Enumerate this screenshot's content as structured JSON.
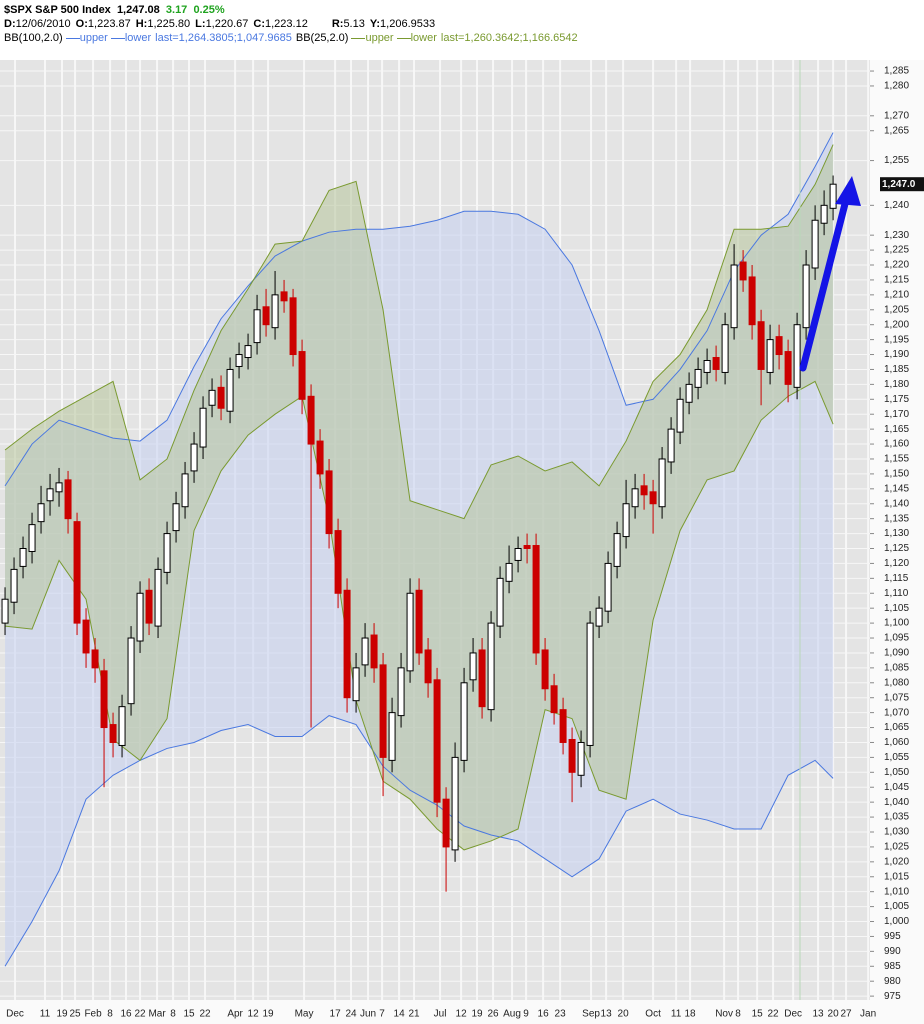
{
  "header": {
    "symbol": "$SPX S&P 500 Index",
    "last": "1,247.08",
    "change": "3.17",
    "change_pct": "0.25%",
    "ohlc": [
      {
        "k": "D:",
        "v": "12/06/2010"
      },
      {
        "k": "O:",
        "v": "1,223.87"
      },
      {
        "k": "H:",
        "v": "1,225.80"
      },
      {
        "k": "L:",
        "v": "1,220.67"
      },
      {
        "k": "C:",
        "v": "1,223.12"
      },
      {
        "k": "R:",
        "v": "5.13"
      },
      {
        "k": "Y:",
        "v": "1,206.9533"
      }
    ],
    "bb": [
      {
        "name": "BB(100,2.0)",
        "upper": "upper",
        "lower": "lower",
        "last": "last=1,264.3805;1,047.9685"
      },
      {
        "name": "BB(25,2.0)",
        "upper": "upper",
        "lower": "lower",
        "last": "last=1,260.3642;1,166.6542"
      }
    ]
  },
  "chart_data": {
    "type": "candlestick",
    "last_label": "1,247.0",
    "up_color": "#000000",
    "down_color": "#cc0000",
    "grid": true,
    "xlim": [
      -0.56,
      96.1
    ],
    "ylim": [
      973.7,
      1288.7
    ],
    "x": [
      0,
      1,
      2,
      3,
      4,
      5,
      6,
      7,
      8,
      9,
      10,
      11,
      12,
      13,
      14,
      15,
      16,
      17,
      18,
      19,
      20,
      21,
      22,
      23,
      24,
      25,
      26,
      27,
      28,
      29,
      30,
      31,
      32,
      33,
      34,
      35,
      36,
      37,
      38,
      39,
      40,
      41,
      42,
      43,
      44,
      45,
      46,
      47,
      48,
      49,
      50,
      51,
      52,
      53,
      54,
      55,
      56,
      57,
      58,
      59,
      60,
      61,
      62,
      63,
      64,
      65,
      66,
      67,
      68,
      69,
      70,
      71,
      72,
      73,
      74,
      75,
      76,
      77,
      78,
      79,
      80,
      81,
      82,
      83,
      84,
      85,
      86,
      87,
      88,
      89,
      90,
      91,
      92
    ],
    "open": [
      1100,
      1107,
      1119,
      1124,
      1134,
      1141,
      1144,
      1148,
      1134,
      1101,
      1091,
      1084,
      1066,
      1059,
      1073,
      1094,
      1111,
      1099,
      1117,
      1131,
      1139,
      1151,
      1159,
      1173,
      1179,
      1171,
      1186,
      1189,
      1194,
      1206,
      1199,
      1211,
      1209,
      1191,
      1176,
      1161,
      1151,
      1131,
      1111,
      1074,
      1086,
      1096,
      1086,
      1054,
      1069,
      1084,
      1111,
      1091,
      1081,
      1041,
      1024,
      1054,
      1081,
      1091,
      1071,
      1099,
      1114,
      1121,
      1126,
      1126,
      1091,
      1079,
      1071,
      1061,
      1049,
      1059,
      1099,
      1104,
      1119,
      1129,
      1139,
      1146,
      1144,
      1139,
      1154,
      1164,
      1174,
      1179,
      1184,
      1189,
      1184,
      1199,
      1221,
      1216,
      1201,
      1184,
      1196,
      1191,
      1179,
      1199,
      1219,
      1234,
      1239
    ],
    "high": [
      1112,
      1122,
      1129,
      1137,
      1146,
      1150,
      1152,
      1151,
      1137,
      1105,
      1095,
      1088,
      1070,
      1076,
      1099,
      1114,
      1115,
      1122,
      1134,
      1144,
      1154,
      1164,
      1176,
      1182,
      1183,
      1189,
      1194,
      1197,
      1210,
      1212,
      1218,
      1215,
      1212,
      1195,
      1180,
      1165,
      1155,
      1135,
      1115,
      1090,
      1100,
      1100,
      1090,
      1075,
      1090,
      1115,
      1115,
      1095,
      1085,
      1045,
      1060,
      1085,
      1095,
      1095,
      1104,
      1119,
      1126,
      1129,
      1130,
      1130,
      1095,
      1083,
      1075,
      1065,
      1064,
      1104,
      1109,
      1124,
      1134,
      1148,
      1150,
      1150,
      1148,
      1159,
      1169,
      1179,
      1184,
      1189,
      1192,
      1193,
      1204,
      1227,
      1225,
      1220,
      1205,
      1200,
      1200,
      1195,
      1204,
      1225,
      1240,
      1245,
      1250
    ],
    "low": [
      1096,
      1103,
      1115,
      1120,
      1130,
      1136,
      1139,
      1130,
      1096,
      1085,
      1080,
      1045,
      1055,
      1055,
      1069,
      1090,
      1096,
      1095,
      1113,
      1127,
      1135,
      1147,
      1155,
      1169,
      1168,
      1167,
      1182,
      1185,
      1190,
      1196,
      1195,
      1204,
      1186,
      1170,
      1065,
      1145,
      1125,
      1105,
      1070,
      1070,
      1082,
      1080,
      1042,
      1050,
      1065,
      1080,
      1086,
      1075,
      1035,
      1010,
      1020,
      1050,
      1077,
      1068,
      1067,
      1095,
      1110,
      1117,
      1120,
      1086,
      1074,
      1066,
      1056,
      1040,
      1045,
      1055,
      1095,
      1100,
      1115,
      1125,
      1135,
      1138,
      1130,
      1135,
      1150,
      1160,
      1170,
      1175,
      1180,
      1181,
      1180,
      1195,
      1211,
      1195,
      1173,
      1180,
      1185,
      1174,
      1175,
      1195,
      1215,
      1230,
      1235
    ],
    "close": [
      1108,
      1118,
      1125,
      1133,
      1140,
      1145,
      1147,
      1135,
      1100,
      1090,
      1085,
      1065,
      1060,
      1072,
      1095,
      1110,
      1100,
      1118,
      1130,
      1140,
      1150,
      1160,
      1172,
      1178,
      1172,
      1185,
      1190,
      1193,
      1205,
      1200,
      1210,
      1208,
      1190,
      1175,
      1160,
      1150,
      1130,
      1110,
      1075,
      1085,
      1095,
      1085,
      1055,
      1070,
      1085,
      1110,
      1090,
      1080,
      1040,
      1025,
      1055,
      1080,
      1090,
      1072,
      1100,
      1115,
      1120,
      1125,
      1125,
      1090,
      1078,
      1070,
      1060,
      1050,
      1060,
      1100,
      1105,
      1120,
      1130,
      1140,
      1145,
      1143,
      1140,
      1155,
      1165,
      1175,
      1180,
      1185,
      1188,
      1185,
      1200,
      1220,
      1215,
      1200,
      1185,
      1195,
      1190,
      1180,
      1200,
      1220,
      1235,
      1240,
      1247.08
    ],
    "band_x": [
      0,
      3,
      6,
      9,
      12,
      15,
      18,
      21,
      24,
      27,
      30,
      33,
      36,
      39,
      42,
      45,
      48,
      51,
      54,
      57,
      60,
      63,
      66,
      69,
      72,
      75,
      78,
      81,
      84,
      87,
      90,
      92
    ],
    "bands": [
      {
        "color": "#4a78e0",
        "fill": "#c4cff0",
        "upper": [
          1146,
          1160,
          1168,
          1165,
          1162,
          1161,
          1168,
          1186,
          1202,
          1213,
          1223,
          1228,
          1231,
          1232,
          1232,
          1233,
          1235,
          1238,
          1238,
          1237,
          1232,
          1220,
          1198,
          1173,
          1175,
          1185,
          1198,
          1218,
          1230,
          1237,
          1253,
          1264.38
        ],
        "lower": [
          985,
          1000,
          1017,
          1041,
          1049,
          1054,
          1058,
          1060,
          1064,
          1066,
          1062,
          1062,
          1069,
          1066,
          1052,
          1044,
          1039,
          1032,
          1029,
          1027,
          1021,
          1015,
          1021,
          1037,
          1041,
          1036,
          1034,
          1031,
          1031,
          1049,
          1054,
          1047.97
        ]
      },
      {
        "color": "#7a9a30",
        "fill": "#b6c49a",
        "upper": [
          1158,
          1165,
          1171,
          1176,
          1181,
          1148,
          1155,
          1178,
          1198,
          1212,
          1227,
          1228,
          1245,
          1248,
          1205,
          1141,
          1138,
          1135,
          1153,
          1156,
          1151,
          1154,
          1146,
          1161,
          1181,
          1190,
          1205,
          1232,
          1232,
          1233,
          1247,
          1260.36
        ],
        "lower": [
          1099,
          1098,
          1121,
          1108,
          1061,
          1054,
          1068,
          1131,
          1151,
          1163,
          1170,
          1176,
          1135,
          1074,
          1047,
          1041,
          1031,
          1024,
          1027,
          1031,
          1071,
          1068,
          1044,
          1041,
          1101,
          1131,
          1148,
          1151,
          1168,
          1176,
          1181,
          1166.65
        ]
      }
    ],
    "yticks": [
      {
        "value": 1285,
        "label": "1,285"
      },
      {
        "value": 1280,
        "label": "1,280"
      },
      {
        "value": 1270,
        "label": "1,270"
      },
      {
        "value": 1265,
        "label": "1,265"
      },
      {
        "value": 1255,
        "label": "1,255"
      },
      {
        "value": 1240,
        "label": "1,240"
      },
      {
        "value": 1230,
        "label": "1,230"
      },
      {
        "value": 1225,
        "label": "1,225"
      },
      {
        "value": 1220,
        "label": "1,220"
      },
      {
        "value": 1215,
        "label": "1,215"
      },
      {
        "value": 1210,
        "label": "1,210"
      },
      {
        "value": 1205,
        "label": "1,205"
      },
      {
        "value": 1200,
        "label": "1,200"
      },
      {
        "value": 1195,
        "label": "1,195"
      },
      {
        "value": 1190,
        "label": "1,190"
      },
      {
        "value": 1185,
        "label": "1,185"
      },
      {
        "value": 1180,
        "label": "1,180"
      },
      {
        "value": 1175,
        "label": "1,175"
      },
      {
        "value": 1170,
        "label": "1,170"
      },
      {
        "value": 1165,
        "label": "1,165"
      },
      {
        "value": 1160,
        "label": "1,160"
      },
      {
        "value": 1155,
        "label": "1,155"
      },
      {
        "value": 1150,
        "label": "1,150"
      },
      {
        "value": 1145,
        "label": "1,145"
      },
      {
        "value": 1140,
        "label": "1,140"
      },
      {
        "value": 1135,
        "label": "1,135"
      },
      {
        "value": 1130,
        "label": "1,130"
      },
      {
        "value": 1125,
        "label": "1,125"
      },
      {
        "value": 1120,
        "label": "1,120"
      },
      {
        "value": 1115,
        "label": "1,115"
      },
      {
        "value": 1110,
        "label": "1,110"
      },
      {
        "value": 1105,
        "label": "1,105"
      },
      {
        "value": 1100,
        "label": "1,100"
      },
      {
        "value": 1095,
        "label": "1,095"
      },
      {
        "value": 1090,
        "label": "1,090"
      },
      {
        "value": 1085,
        "label": "1,085"
      },
      {
        "value": 1080,
        "label": "1,080"
      },
      {
        "value": 1075,
        "label": "1,075"
      },
      {
        "value": 1070,
        "label": "1,070"
      },
      {
        "value": 1065,
        "label": "1,065"
      },
      {
        "value": 1060,
        "label": "1,060"
      },
      {
        "value": 1055,
        "label": "1,055"
      },
      {
        "value": 1050,
        "label": "1,050"
      },
      {
        "value": 1045,
        "label": "1,045"
      },
      {
        "value": 1040,
        "label": "1,040"
      },
      {
        "value": 1035,
        "label": "1,035"
      },
      {
        "value": 1030,
        "label": "1,030"
      },
      {
        "value": 1025,
        "label": "1,025"
      },
      {
        "value": 1020,
        "label": "1,020"
      },
      {
        "value": 1015,
        "label": "1,015"
      },
      {
        "value": 1010,
        "label": "1,010"
      },
      {
        "value": 1005,
        "label": "1,005"
      },
      {
        "value": 1000,
        "label": "1,000"
      },
      995,
      990,
      985,
      980,
      975
    ],
    "xticks": [
      {
        "value": 1.11,
        "label": "Dec"
      },
      {
        "value": 4.44,
        "label": "11"
      },
      {
        "value": 6.33,
        "label": "19"
      },
      {
        "value": 7.78,
        "label": "25"
      },
      {
        "value": 9.78,
        "label": "Feb"
      },
      {
        "value": 11.67,
        "label": "8"
      },
      {
        "value": 13.44,
        "label": "16"
      },
      {
        "value": 15,
        "label": "22"
      },
      {
        "value": 16.89,
        "label": "Mar"
      },
      {
        "value": 18.67,
        "label": "8"
      },
      {
        "value": 20.44,
        "label": "15"
      },
      {
        "value": 22.22,
        "label": "22"
      },
      {
        "value": 25.56,
        "label": "Apr"
      },
      {
        "value": 27.56,
        "label": "12"
      },
      {
        "value": 29.22,
        "label": "19"
      },
      {
        "value": 33.22,
        "label": "May"
      },
      {
        "value": 36.67,
        "label": "17"
      },
      {
        "value": 38.44,
        "label": "24"
      },
      {
        "value": 40.33,
        "label": "Jun"
      },
      {
        "value": 41.89,
        "label": "7"
      },
      {
        "value": 43.78,
        "label": "14"
      },
      {
        "value": 45.44,
        "label": "21"
      },
      {
        "value": 48.33,
        "label": "Jul"
      },
      {
        "value": 50.67,
        "label": "12"
      },
      {
        "value": 52.44,
        "label": "19"
      },
      {
        "value": 54.22,
        "label": "26"
      },
      {
        "value": 56.33,
        "label": "Aug"
      },
      {
        "value": 57.89,
        "label": "9"
      },
      {
        "value": 59.78,
        "label": "16"
      },
      {
        "value": 61.67,
        "label": "23"
      },
      {
        "value": 65.11,
        "label": "Sep"
      },
      {
        "value": 66.78,
        "label": "13"
      },
      {
        "value": 68.67,
        "label": "20"
      },
      {
        "value": 72,
        "label": "Oct"
      },
      {
        "value": 74.56,
        "label": "11"
      },
      {
        "value": 76.11,
        "label": "18"
      },
      {
        "value": 79.89,
        "label": "Nov"
      },
      {
        "value": 81.44,
        "label": "8"
      },
      {
        "value": 83.56,
        "label": "15"
      },
      {
        "value": 85.33,
        "label": "22"
      },
      {
        "value": 87.56,
        "label": "Dec"
      },
      {
        "value": 90.33,
        "label": "13"
      },
      {
        "value": 92,
        "label": "20"
      },
      {
        "value": 93.44,
        "label": "27"
      },
      {
        "value": 95.89,
        "label": "Jan"
      }
    ]
  }
}
